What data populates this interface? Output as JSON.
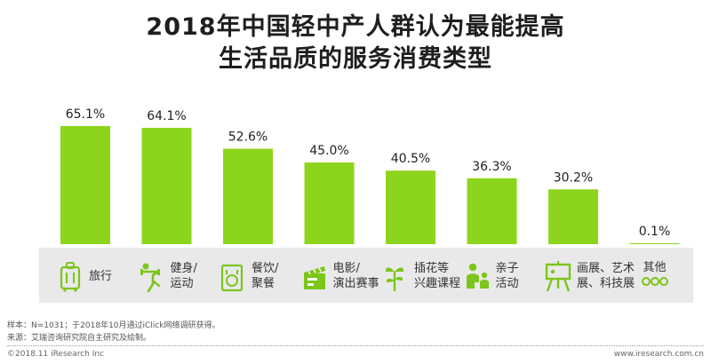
{
  "chart_data": {
    "type": "bar",
    "title": "2018年中国轻中产人群认为最能提高",
    "subtitle": "生活品质的服务消费类型",
    "categories": [
      "旅行",
      "健身/\n运动",
      "餐饮/\n聚餐",
      "电影/\n演出赛事",
      "插花等\n兴趣课程",
      "亲子\n活动",
      "画展、艺术\n展、科技展",
      "其他"
    ],
    "values": [
      65.1,
      64.1,
      52.6,
      45.0,
      40.5,
      36.3,
      30.2,
      0.1
    ],
    "value_labels": [
      "65.1%",
      "64.1%",
      "52.6%",
      "45.0%",
      "40.5%",
      "36.3%",
      "30.2%",
      "0.1%"
    ],
    "ylim": [
      0,
      70
    ],
    "grid": false,
    "legend": "none",
    "bar_color": "#8dd51c",
    "category_icons": [
      "suitcase-icon",
      "fitness-icon",
      "dining-icon",
      "clapperboard-icon",
      "flower-icon",
      "parent-child-icon",
      "easel-icon",
      "more-icon"
    ]
  },
  "colors": {
    "bar": "#8dd51c",
    "icon": "#7cc51b",
    "strip": "#e9e9e9"
  },
  "notes": {
    "sample": "样本：N=1031；于2018年10月通过iClick网络调研获得。",
    "source": "来源：艾瑞咨询研究院自主研究及绘制。"
  },
  "footer": {
    "copyright": "©2018.11 iResearch Inc",
    "site": "www.iresearch.com.cn"
  }
}
